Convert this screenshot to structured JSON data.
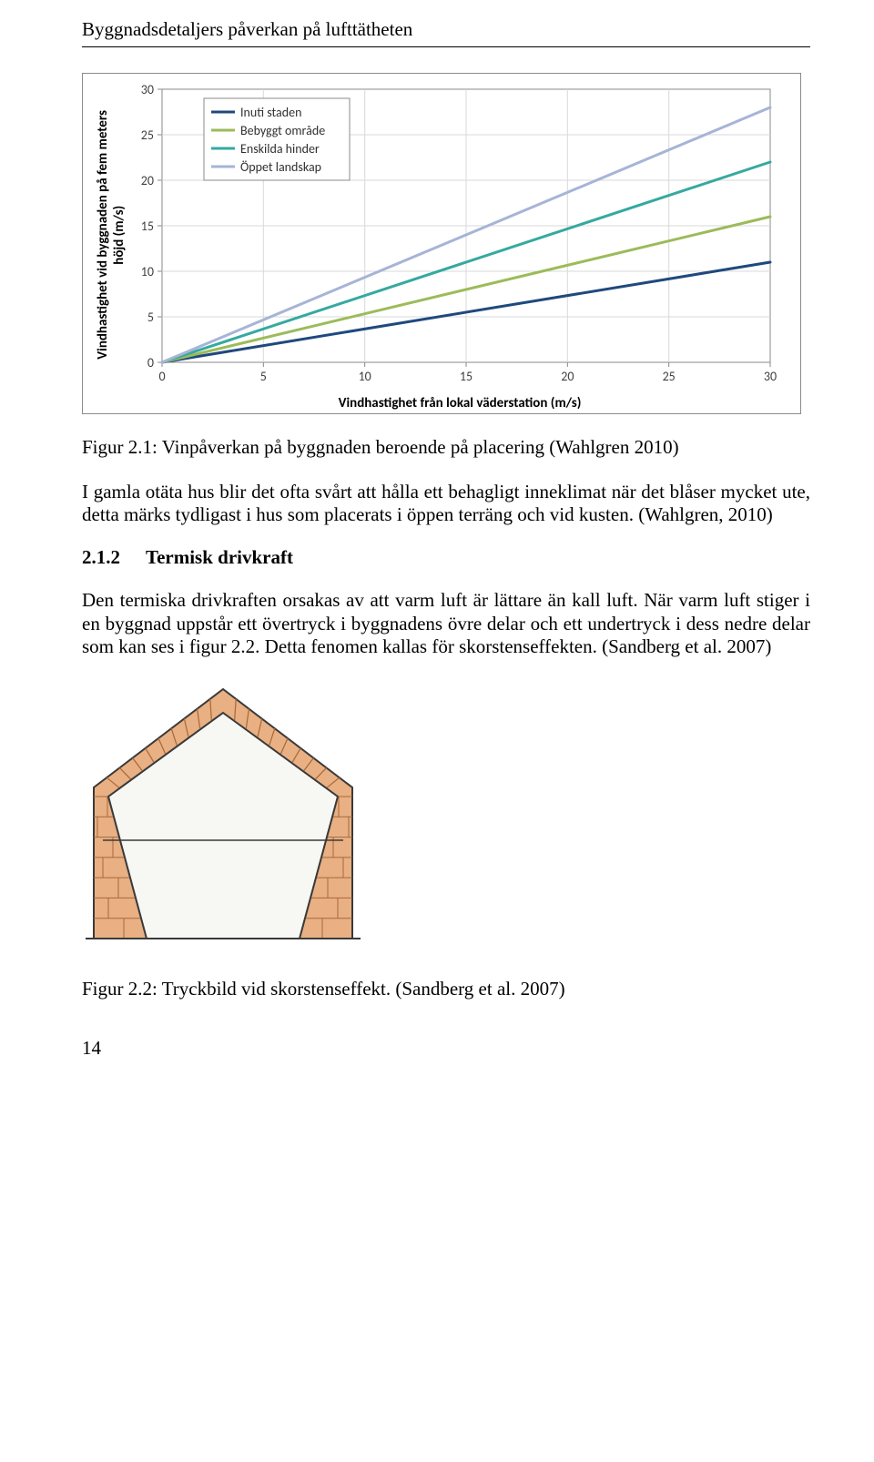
{
  "header": "Byggnadsdetaljers påverkan på lufttätheten",
  "chart": {
    "type": "line",
    "x_ticks": [
      0,
      5,
      10,
      15,
      20,
      25,
      30
    ],
    "y_ticks": [
      0,
      5,
      10,
      15,
      20,
      25,
      30
    ],
    "xlim": [
      0,
      30
    ],
    "ylim": [
      0,
      30
    ],
    "xlabel": "Vindhastighet från lokal väderstation (m/s)",
    "ylabel_line1": "Vindhastighet vid byggnaden på fem meters",
    "ylabel_line2": "höjd (m/s)",
    "grid_color": "#d9d9d9",
    "axis_color": "#888888",
    "tick_color": "#888888",
    "tick_font_size": 14,
    "label_font_size": 15,
    "series": [
      {
        "name": "Inuti staden",
        "color": "#1f497d",
        "points": [
          [
            0,
            0
          ],
          [
            30,
            11
          ]
        ],
        "width": 3
      },
      {
        "name": "Bebyggt område",
        "color": "#9cbb59",
        "points": [
          [
            0,
            0
          ],
          [
            30,
            16
          ]
        ],
        "width": 3
      },
      {
        "name": "Enskilda hinder",
        "color": "#35a9a0",
        "points": [
          [
            0,
            0
          ],
          [
            30,
            22
          ]
        ],
        "width": 3
      },
      {
        "name": "Öppet landskap",
        "color": "#a6b4d6",
        "points": [
          [
            0,
            0
          ],
          [
            30,
            28
          ]
        ],
        "width": 3
      }
    ],
    "legend_border": "#8b8b8b",
    "legend_bg": "#ffffff"
  },
  "caption1": "Figur 2.1: Vinpåverkan på byggnaden beroende på placering (Wahlgren 2010)",
  "para1": "I gamla otäta hus blir det ofta svårt att hålla ett behagligt inneklimat när det blåser mycket ute, detta märks tydligast i hus som placerats i öppen terräng och vid kusten. (Wahlgren, 2010)",
  "section": {
    "num": "2.1.2",
    "title": "Termisk drivkraft"
  },
  "para2": "Den termiska drivkraften orsakas av att varm luft är lättare än kall luft. När varm luft stiger i en byggnad uppstår ett övertryck i byggnadens övre delar och ett undertryck i dess nedre delar som kan ses i figur 2.2. Detta fenomen kallas för skorstenseffekten. (Sandberg et al. 2007)",
  "house": {
    "brick_fill": "#e8b083",
    "brick_stroke": "#a86838",
    "mortar": "#e8e2d6",
    "wall_fill": "#f7f7f3",
    "outline": "#3a3a3a",
    "ground": "#3a3a3a"
  },
  "caption2": "Figur 2.2: Tryckbild vid skorstenseffekt. (Sandberg et al. 2007)",
  "page_number": "14"
}
